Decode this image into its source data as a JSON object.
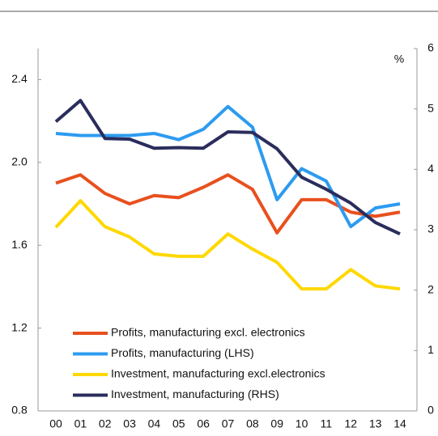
{
  "chart_data": {
    "type": "line",
    "categories": [
      "00",
      "01",
      "02",
      "03",
      "04",
      "05",
      "06",
      "07",
      "08",
      "09",
      "10",
      "11",
      "12",
      "13",
      "14"
    ],
    "ylim": [
      0.8,
      2.55
    ],
    "yticks": [
      0.8,
      1.2,
      1.6,
      {
        "value": 2.0,
        "label": "2.0"
      },
      2.4
    ],
    "y2lim": [
      0,
      6
    ],
    "y2ticks": [
      0,
      1,
      2,
      3,
      4,
      5,
      6
    ],
    "y2label": "%",
    "series": [
      {
        "name": "Profits, manufacturing excl. electronics",
        "color": "#e8501e",
        "values": [
          1.9,
          1.94,
          1.85,
          1.8,
          1.84,
          1.83,
          1.88,
          1.94,
          1.87,
          1.66,
          1.82,
          1.82,
          1.76,
          1.74,
          1.76
        ]
      },
      {
        "name": "Profits, manufacturing (LHS)",
        "color": "#2d9bf0",
        "values": [
          2.14,
          2.13,
          2.13,
          2.13,
          2.14,
          2.11,
          2.16,
          2.27,
          2.17,
          1.82,
          1.97,
          1.91,
          1.69,
          1.78,
          1.8
        ]
      },
      {
        "name": "Investment, manufacturing excl.electronics",
        "color": "#ffd800",
        "axis": "y2",
        "values": [
          3.04,
          3.48,
          3.05,
          2.88,
          2.6,
          2.56,
          2.56,
          2.93,
          2.68,
          2.46,
          2.02,
          2.02,
          2.34,
          2.07,
          2.02
        ]
      },
      {
        "name": "Investment, manufacturing (RHS)",
        "color": "#2a2d5c",
        "axis": "y2",
        "values": [
          4.79,
          5.14,
          4.51,
          4.5,
          4.35,
          4.36,
          4.35,
          4.62,
          4.61,
          4.34,
          3.87,
          3.67,
          3.44,
          3.12,
          2.93
        ]
      }
    ]
  }
}
